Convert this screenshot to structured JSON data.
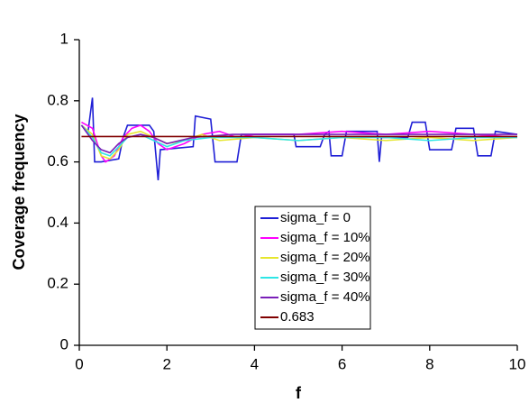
{
  "chart_data": {
    "type": "line",
    "xlabel": "f",
    "ylabel": "Coverage frequency",
    "xlim": [
      0,
      10
    ],
    "xticks": [
      0,
      2,
      4,
      6,
      8,
      10
    ],
    "ylim": [
      0,
      1
    ],
    "yticks": [
      0,
      0.2,
      0.4,
      0.6,
      0.8,
      1
    ],
    "grid": false,
    "series": [
      {
        "name": "sigma_f = 0",
        "color": "#1f1fd6",
        "x": [
          0.05,
          0.2,
          0.3,
          0.35,
          0.5,
          0.9,
          1.0,
          1.1,
          1.6,
          1.7,
          1.8,
          1.85,
          2.6,
          2.65,
          3.0,
          3.1,
          3.6,
          3.7,
          4.9,
          4.95,
          5.5,
          5.6,
          5.7,
          5.75,
          6.0,
          6.1,
          6.8,
          6.85,
          6.9,
          7.5,
          7.6,
          7.9,
          8.0,
          8.5,
          8.6,
          9.0,
          9.1,
          9.4,
          9.5,
          10
        ],
        "values": [
          0.72,
          0.7,
          0.81,
          0.6,
          0.6,
          0.61,
          0.68,
          0.72,
          0.72,
          0.7,
          0.54,
          0.64,
          0.65,
          0.75,
          0.74,
          0.6,
          0.6,
          0.69,
          0.69,
          0.65,
          0.65,
          0.69,
          0.7,
          0.62,
          0.62,
          0.7,
          0.7,
          0.6,
          0.68,
          0.68,
          0.73,
          0.73,
          0.64,
          0.64,
          0.71,
          0.71,
          0.62,
          0.62,
          0.7,
          0.69
        ]
      },
      {
        "name": "sigma_f = 10%",
        "color": "#ff00ff",
        "x": [
          0.05,
          0.3,
          0.5,
          0.6,
          0.8,
          1.0,
          1.2,
          1.4,
          1.6,
          1.8,
          2.0,
          2.4,
          2.8,
          3.2,
          3.6,
          4.0,
          5.0,
          6.0,
          7.0,
          8.0,
          9.0,
          10
        ],
        "values": [
          0.73,
          0.71,
          0.62,
          0.6,
          0.62,
          0.68,
          0.71,
          0.72,
          0.7,
          0.66,
          0.64,
          0.66,
          0.69,
          0.7,
          0.68,
          0.69,
          0.69,
          0.7,
          0.69,
          0.7,
          0.69,
          0.68
        ]
      },
      {
        "name": "sigma_f = 20%",
        "color": "#e6e62e",
        "x": [
          0.05,
          0.3,
          0.5,
          0.7,
          0.9,
          1.1,
          1.4,
          1.7,
          2.0,
          2.4,
          2.8,
          3.2,
          4.0,
          5.0,
          6.0,
          7.0,
          8.0,
          9.0,
          10
        ],
        "values": [
          0.72,
          0.69,
          0.62,
          0.61,
          0.64,
          0.69,
          0.7,
          0.68,
          0.66,
          0.67,
          0.69,
          0.67,
          0.68,
          0.67,
          0.68,
          0.67,
          0.68,
          0.67,
          0.68
        ]
      },
      {
        "name": "sigma_f = 30%",
        "color": "#2ee6e6",
        "x": [
          0.05,
          0.3,
          0.5,
          0.7,
          0.9,
          1.1,
          1.4,
          1.7,
          2.0,
          2.4,
          3.0,
          4.0,
          5.0,
          6.0,
          7.0,
          8.0,
          9.0,
          10
        ],
        "values": [
          0.72,
          0.68,
          0.63,
          0.62,
          0.65,
          0.68,
          0.69,
          0.67,
          0.65,
          0.67,
          0.68,
          0.68,
          0.67,
          0.68,
          0.68,
          0.67,
          0.68,
          0.68
        ]
      },
      {
        "name": "sigma_f = 40%",
        "color": "#7a1fb8",
        "x": [
          0.05,
          0.3,
          0.5,
          0.7,
          0.9,
          1.1,
          1.4,
          1.7,
          2.0,
          2.6,
          3.5,
          5.0,
          6.5,
          8.0,
          10
        ],
        "values": [
          0.72,
          0.67,
          0.64,
          0.63,
          0.66,
          0.68,
          0.69,
          0.68,
          0.66,
          0.68,
          0.69,
          0.69,
          0.69,
          0.69,
          0.69
        ]
      },
      {
        "name": "0.683",
        "color": "#800000",
        "x": [
          0.05,
          10
        ],
        "values": [
          0.683,
          0.683
        ]
      }
    ]
  }
}
